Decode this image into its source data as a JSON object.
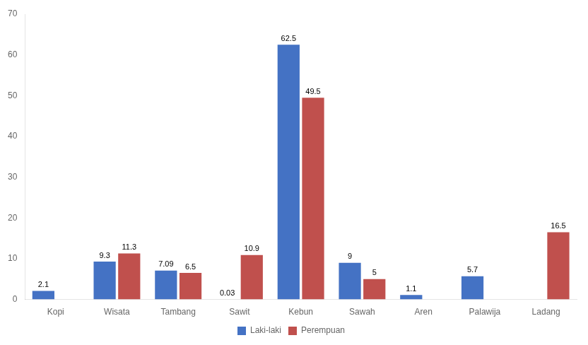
{
  "chart_data": {
    "type": "bar",
    "categories": [
      "Kopi",
      "Wisata",
      "Tambang",
      "Sawit",
      "Kebun",
      "Sawah",
      "Aren",
      "Palawija",
      "Ladang"
    ],
    "series": [
      {
        "name": "Laki-laki",
        "color": "#4472C4",
        "values": [
          2.1,
          9.3,
          7.09,
          0.03,
          62.5,
          9,
          1.1,
          5.7,
          0
        ],
        "value_labels": [
          "2.1",
          "9.3",
          "7.09",
          "0.03",
          "62.5",
          "9",
          "1.1",
          "5.7",
          null
        ]
      },
      {
        "name": "Perempuan",
        "color": "#C0504D",
        "values": [
          0,
          11.3,
          6.5,
          10.9,
          49.5,
          5,
          0,
          0,
          16.5
        ],
        "value_labels": [
          null,
          "11.3",
          "6.5",
          "10.9",
          "49.5",
          "5",
          null,
          null,
          "16.5"
        ]
      }
    ],
    "ylim": [
      0,
      70
    ],
    "yticks": [
      0,
      10,
      20,
      30,
      40,
      50,
      60,
      70
    ],
    "grid": false,
    "legend": "bottom",
    "data_labels": true
  }
}
